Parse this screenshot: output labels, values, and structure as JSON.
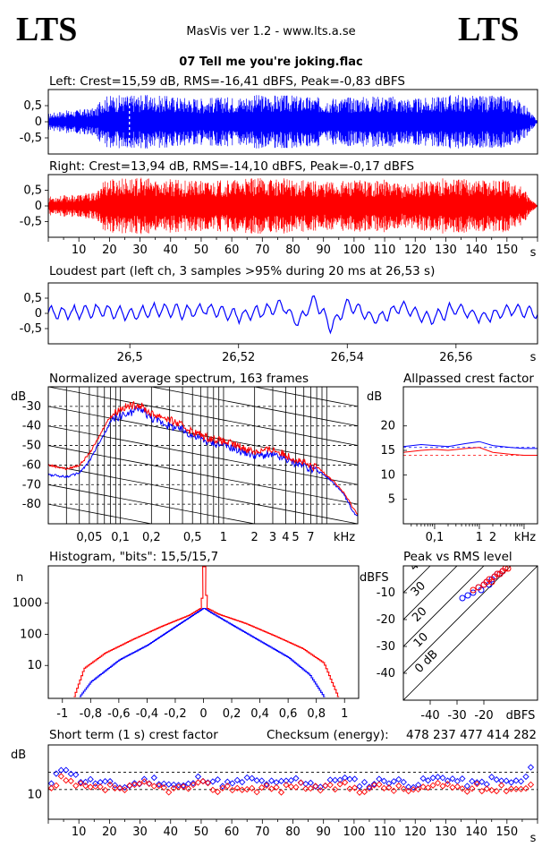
{
  "header": {
    "logo_left": "LTS",
    "logo_right": "LTS",
    "app_title": "MasVis ver 1.2 - www.lts.a.se",
    "file_title": "07 Tell me you're joking.flac"
  },
  "colors": {
    "left": "#0000ff",
    "right": "#ff0000",
    "axis": "#000000",
    "background": "#ffffff"
  },
  "chart_data": [
    {
      "id": "left-waveform",
      "type": "area",
      "title": "Left: Crest=15,59 dB, RMS=-16,41 dBFS, Peak=-0,83 dBFS",
      "ylim": [
        -1,
        1
      ],
      "xlim": [
        0,
        160
      ],
      "yticks": [
        "0,5",
        "0",
        "-0,5"
      ],
      "marker_at_s": 26.53,
      "series": [
        {
          "color": "#0000ff",
          "envelope_s": [
            0,
            2,
            4,
            6,
            8,
            10,
            12,
            14,
            16,
            17,
            18,
            20,
            30,
            40,
            50,
            60,
            70,
            80,
            90,
            100,
            110,
            120,
            125,
            130,
            140,
            150,
            155,
            158,
            160
          ],
          "envelope_amp": [
            0.25,
            0.3,
            0.33,
            0.35,
            0.37,
            0.38,
            0.4,
            0.42,
            0.45,
            0.75,
            0.8,
            0.82,
            0.85,
            0.8,
            0.75,
            0.78,
            0.85,
            0.82,
            0.75,
            0.78,
            0.82,
            0.72,
            0.75,
            0.85,
            0.82,
            0.8,
            0.65,
            0.25,
            0.05
          ]
        }
      ]
    },
    {
      "id": "right-waveform",
      "type": "area",
      "title": "Right: Crest=13,94 dB, RMS=-14,10 dBFS, Peak=-0,17 dBFS",
      "ylim": [
        -1,
        1
      ],
      "xlim": [
        0,
        160
      ],
      "yticks": [
        "0,5",
        "0",
        "-0,5"
      ],
      "xticks": [
        "10",
        "20",
        "30",
        "40",
        "50",
        "60",
        "70",
        "80",
        "90",
        "100",
        "110",
        "120",
        "130",
        "140",
        "150"
      ],
      "xunit": "s",
      "series": [
        {
          "color": "#ff0000",
          "envelope_s": [
            0,
            4,
            8,
            12,
            16,
            17,
            18,
            20,
            30,
            40,
            50,
            60,
            70,
            80,
            90,
            100,
            110,
            115,
            120,
            125,
            130,
            140,
            150,
            155,
            158,
            160
          ],
          "envelope_amp": [
            0.3,
            0.33,
            0.35,
            0.4,
            0.42,
            0.75,
            0.85,
            0.88,
            0.9,
            0.85,
            0.8,
            0.83,
            0.9,
            0.87,
            0.8,
            0.82,
            0.84,
            0.7,
            0.75,
            0.88,
            0.9,
            0.88,
            0.85,
            0.6,
            0.2,
            0.05
          ]
        }
      ]
    },
    {
      "id": "loudest-part",
      "type": "line",
      "title": "Loudest part (left  ch, 3 samples >95% during 20 ms at 26,53 s)",
      "xlim": [
        26.485,
        26.575
      ],
      "ylim": [
        -1,
        1
      ],
      "yticks": [
        "0,5",
        "0",
        "-0,5"
      ],
      "xticks": [
        "26,5",
        "26,52",
        "26,54",
        "26,56"
      ],
      "xunit": "s",
      "series": [
        {
          "color": "#0000ff",
          "x": [
            26.485,
            26.49,
            26.495,
            26.5,
            26.505,
            26.51,
            26.515,
            26.52,
            26.525,
            26.528,
            26.531,
            26.534,
            26.537,
            26.54,
            26.545,
            26.55,
            26.555,
            26.56,
            26.565,
            26.57,
            26.575
          ],
          "y": [
            0.0,
            0.05,
            0.15,
            -0.05,
            0.2,
            0.1,
            0.22,
            -0.15,
            0.15,
            0.45,
            -0.55,
            0.82,
            -0.75,
            0.55,
            -0.35,
            0.4,
            -0.3,
            0.3,
            -0.25,
            0.2,
            0.0
          ]
        }
      ]
    },
    {
      "id": "spectrum",
      "type": "line",
      "title": "Normalized average spectrum, 163 frames",
      "ylabel": "dB",
      "xunit": "kHz",
      "xscale": "log",
      "xlim": [
        0.02,
        20
      ],
      "ylim": [
        -90,
        -20
      ],
      "yticks": [
        -30,
        -40,
        -50,
        -60,
        -70,
        -80
      ],
      "xticks": [
        "0,05",
        "0,1",
        "0,2",
        "0,5",
        "1",
        "2",
        "3",
        "4",
        "5",
        "7"
      ],
      "xtick_values": [
        0.05,
        0.1,
        0.2,
        0.5,
        1,
        2,
        3,
        4,
        5,
        7
      ],
      "series": [
        {
          "color": "#0000ff",
          "x": [
            0.02,
            0.03,
            0.04,
            0.05,
            0.06,
            0.07,
            0.08,
            0.09,
            0.1,
            0.12,
            0.15,
            0.2,
            0.25,
            0.3,
            0.4,
            0.5,
            0.7,
            1,
            1.5,
            2,
            3,
            4,
            5,
            6,
            7,
            8,
            10,
            12,
            15,
            18,
            20
          ],
          "y": [
            -65,
            -66,
            -64,
            -58,
            -50,
            -44,
            -38,
            -36,
            -35,
            -34,
            -31,
            -36,
            -38,
            -40,
            -42,
            -45,
            -48,
            -50,
            -53,
            -55,
            -55,
            -57,
            -59,
            -60,
            -62,
            -63,
            -66,
            -70,
            -76,
            -84,
            -86
          ]
        },
        {
          "color": "#ff0000",
          "x": [
            0.02,
            0.03,
            0.04,
            0.05,
            0.06,
            0.07,
            0.08,
            0.09,
            0.1,
            0.12,
            0.15,
            0.2,
            0.25,
            0.3,
            0.4,
            0.5,
            0.7,
            1,
            1.5,
            2,
            3,
            4,
            5,
            6,
            7,
            8,
            10,
            12,
            15,
            18,
            20
          ],
          "y": [
            -60,
            -62,
            -60,
            -54,
            -47,
            -40,
            -35,
            -33,
            -31,
            -30,
            -29,
            -34,
            -35,
            -37,
            -40,
            -43,
            -46,
            -48,
            -51,
            -53,
            -52,
            -55,
            -57,
            -59,
            -61,
            -61,
            -65,
            -69,
            -75,
            -82,
            -85
          ]
        }
      ]
    },
    {
      "id": "allpassed-crest",
      "type": "line",
      "title": "Allpassed crest factor",
      "ylabel": "dB",
      "xunit": "kHz",
      "xscale": "log",
      "xlim": [
        0.02,
        20
      ],
      "ylim": [
        0,
        28
      ],
      "yticks": [
        20,
        15,
        10,
        5
      ],
      "xticks": [
        "0,1",
        "1",
        "2"
      ],
      "xtick_values": [
        0.1,
        1,
        2
      ],
      "reference_lines": [
        14.0,
        15.6
      ],
      "series": [
        {
          "color": "#0000ff",
          "x": [
            0.02,
            0.05,
            0.1,
            0.2,
            0.5,
            1,
            2,
            5,
            10,
            20
          ],
          "y": [
            15.8,
            16.2,
            16.0,
            15.8,
            16.4,
            16.8,
            16.0,
            15.6,
            15.4,
            15.4
          ]
        },
        {
          "color": "#ff0000",
          "x": [
            0.02,
            0.05,
            0.1,
            0.2,
            0.5,
            1,
            2,
            5,
            10,
            20
          ],
          "y": [
            14.6,
            15.0,
            15.2,
            15.0,
            15.4,
            15.6,
            14.6,
            14.2,
            14.0,
            14.0
          ]
        }
      ]
    },
    {
      "id": "histogram",
      "type": "line",
      "title": "Histogram, \"bits\": 15,5/15,7",
      "ylabel": "n",
      "yscale": "log",
      "xlim": [
        -1.1,
        1.1
      ],
      "yticks": [
        "1000",
        "100",
        "10"
      ],
      "xticks": [
        "-1",
        "-0,8",
        "-0,6",
        "-0,4",
        "-0,2",
        "0",
        "0,2",
        "0,4",
        "0,6",
        "0,8",
        "1"
      ],
      "series": [
        {
          "color": "#ff0000",
          "x": [
            -0.92,
            -0.85,
            -0.7,
            -0.5,
            -0.3,
            -0.1,
            -0.02,
            0,
            0.02,
            0.1,
            0.3,
            0.5,
            0.7,
            0.85,
            0.95
          ],
          "y": [
            1,
            8,
            25,
            70,
            180,
            420,
            700,
            30000,
            700,
            450,
            220,
            90,
            35,
            12,
            1
          ]
        },
        {
          "color": "#0000ff",
          "x": [
            -0.88,
            -0.8,
            -0.6,
            -0.4,
            -0.2,
            -0.05,
            0,
            0.05,
            0.2,
            0.4,
            0.6,
            0.75,
            0.85
          ],
          "y": [
            1,
            3,
            15,
            45,
            180,
            500,
            700,
            500,
            200,
            60,
            18,
            5,
            1
          ]
        }
      ]
    },
    {
      "id": "peak-vs-rms",
      "type": "scatter",
      "title": "Peak vs RMS level",
      "ylabel": "dBFS",
      "xlabel": "dBFS",
      "xlim": [
        -50,
        0
      ],
      "ylim": [
        -50,
        0
      ],
      "yticks": [
        -10,
        -20,
        -30,
        -40
      ],
      "xticks": [
        -40,
        -30,
        -20
      ],
      "crest_lines": [
        "40",
        "30",
        "20",
        "10",
        "0 dB"
      ],
      "series": [
        {
          "color": "#0000ff",
          "x": [
            -28,
            -26,
            -24,
            -22,
            -21,
            -20,
            -19,
            -18,
            -17,
            -16,
            -15,
            -14,
            -13
          ],
          "y": [
            -12,
            -11,
            -10,
            -8,
            -9,
            -7,
            -6,
            -7,
            -5,
            -4,
            -3,
            -3,
            -2
          ]
        },
        {
          "color": "#ff0000",
          "x": [
            -24,
            -22,
            -20,
            -19,
            -18,
            -17,
            -16,
            -15,
            -14,
            -13,
            -12,
            -11
          ],
          "y": [
            -9,
            -8,
            -7,
            -6,
            -5,
            -6,
            -4,
            -3,
            -3,
            -2,
            -1,
            -1
          ]
        }
      ]
    },
    {
      "id": "short-term-crest",
      "type": "scatter",
      "title": "Short term (1 s) crest factor",
      "checksum_label": "Checksum (energy):",
      "checksum_value": "478 237 477 414 282",
      "ylabel": "dB",
      "xunit": "s",
      "xlim": [
        0,
        160
      ],
      "ylim": [
        0,
        30
      ],
      "yticks": [
        "10"
      ],
      "xticks": [
        "10",
        "20",
        "30",
        "40",
        "50",
        "60",
        "70",
        "80",
        "90",
        "100",
        "110",
        "120",
        "130",
        "140",
        "150"
      ],
      "reference_lines": [
        12,
        19
      ],
      "series": [
        {
          "color": "#0000ff",
          "x": [
            1,
            3,
            5,
            10,
            15,
            20,
            25,
            30,
            35,
            40,
            45,
            50,
            55,
            60,
            65,
            70,
            75,
            80,
            85,
            90,
            95,
            100,
            105,
            110,
            115,
            120,
            125,
            130,
            135,
            140,
            145,
            150,
            155,
            158
          ],
          "y": [
            14,
            18,
            22,
            16,
            15,
            14,
            13,
            15,
            16,
            14,
            13,
            17,
            15,
            14,
            16,
            15,
            14,
            16,
            15,
            13,
            17,
            15,
            14,
            16,
            15,
            14,
            16,
            17,
            15,
            14,
            16,
            15,
            15,
            20
          ]
        },
        {
          "color": "#ff0000",
          "x": [
            2,
            4,
            6,
            11,
            16,
            21,
            26,
            31,
            36,
            41,
            46,
            51,
            56,
            61,
            66,
            71,
            76,
            81,
            86,
            91,
            96,
            101,
            106,
            111,
            116,
            121,
            126,
            131,
            136,
            141,
            146,
            151,
            156,
            159
          ],
          "y": [
            12,
            16,
            15,
            13,
            12,
            13,
            12,
            14,
            13,
            12,
            13,
            14,
            12,
            13,
            12,
            13,
            12,
            14,
            13,
            12,
            14,
            12,
            13,
            13,
            12,
            12,
            13,
            14,
            12,
            13,
            12,
            13,
            12,
            17
          ]
        }
      ]
    }
  ]
}
